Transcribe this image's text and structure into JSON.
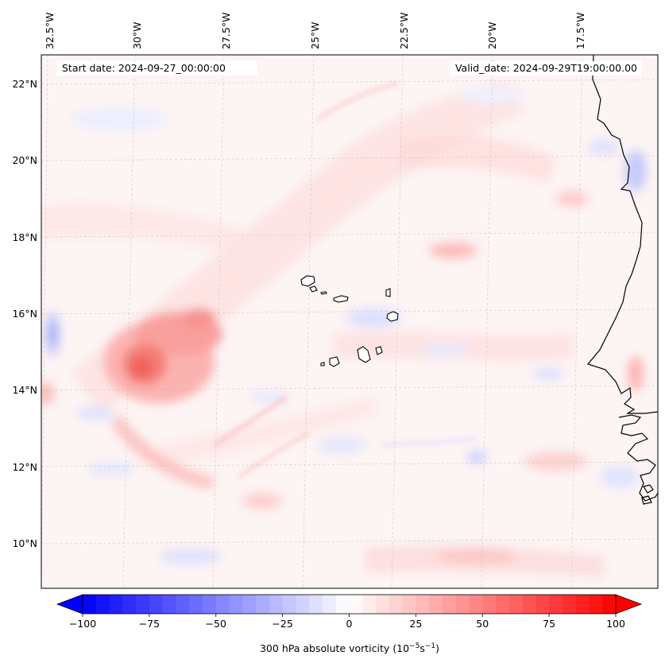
{
  "header": {
    "start_date": "Start date: 2024-09-27_00:00:00",
    "valid_date": "Valid_date: 2024-09-29T19:00:00.00"
  },
  "map": {
    "longitude_labels": [
      "32.5°W",
      "30°W",
      "27.5°W",
      "25°W",
      "22.5°W",
      "20°W",
      "17.5°W"
    ],
    "latitude_labels": [
      "22°N",
      "20°N",
      "18°N",
      "16°N",
      "14°N",
      "12°N",
      "10°N"
    ],
    "extent": {
      "lon_min": -33.5,
      "lon_max": -15.6,
      "lat_min": 8.9,
      "lat_max": 22.8
    },
    "features": [
      "Cabo Verde islands",
      "West African coastline (Mauritania, Senegal, Gambia, Guinea-Bissau)"
    ]
  },
  "colorbar": {
    "label_prefix": "300 hPa absolute vorticity (10",
    "label_exp1": "−5",
    "label_mid": "s",
    "label_exp2": "−1",
    "label_suffix": ")",
    "ticks": [
      "−100",
      "−75",
      "−50",
      "−25",
      "0",
      "25",
      "50",
      "75",
      "100"
    ],
    "tick_values": [
      -100,
      -75,
      -50,
      -25,
      0,
      25,
      50,
      75,
      100
    ],
    "min": -100,
    "max": 100,
    "low_color": "#0000ff",
    "mid_color": "#ffffff",
    "high_color": "#ff0000"
  }
}
